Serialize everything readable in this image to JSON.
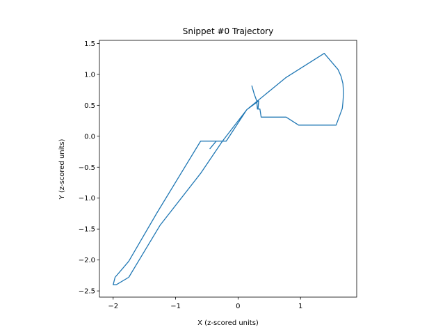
{
  "chart_data": {
    "type": "line",
    "title": "Snippet #0 Trajectory",
    "xlabel": "X (z-scored units)",
    "ylabel": "Y (z-scored units)",
    "xlim": [
      -2.22,
      1.9
    ],
    "ylim": [
      -2.6,
      1.55
    ],
    "xticks": [
      -2,
      -1,
      0,
      1
    ],
    "xtick_labels": [
      "−2",
      "−1",
      "0",
      "1"
    ],
    "yticks": [
      -2.5,
      -2.0,
      -1.5,
      -1.0,
      -0.5,
      0.0,
      0.5,
      1.0,
      1.5
    ],
    "ytick_labels": [
      "−2.5",
      "−2.0",
      "−1.5",
      "−1.0",
      "−0.5",
      "0.0",
      "0.5",
      "1.0",
      "1.5"
    ],
    "grid": false,
    "line_color": "#1f77b4",
    "series": [
      {
        "x": [
          0.22,
          0.26,
          0.3,
          0.31,
          0.35,
          0.37,
          0.77,
          0.97,
          1.57,
          1.67,
          1.68,
          1.69,
          1.68,
          1.65,
          1.6,
          1.38,
          0.77,
          0.14,
          -0.19,
          -0.35,
          -0.45,
          -0.45,
          -0.35,
          -0.25,
          -0.6,
          -1.3,
          -1.75,
          -1.85,
          -1.97,
          -2.0,
          -1.95,
          -1.75,
          -1.25,
          -0.6,
          -0.25,
          0.14,
          0.33,
          0.32
        ],
        "y": [
          0.82,
          0.68,
          0.57,
          0.44,
          0.44,
          0.31,
          0.31,
          0.18,
          0.18,
          0.45,
          0.55,
          0.7,
          0.85,
          0.97,
          1.08,
          1.34,
          0.95,
          0.43,
          -0.08,
          -0.08,
          -0.2,
          -0.2,
          -0.08,
          -0.08,
          -0.08,
          -1.24,
          -2.02,
          -2.14,
          -2.28,
          -2.4,
          -2.4,
          -2.28,
          -1.44,
          -0.6,
          -0.08,
          0.43,
          0.57,
          0.44
        ]
      }
    ]
  }
}
